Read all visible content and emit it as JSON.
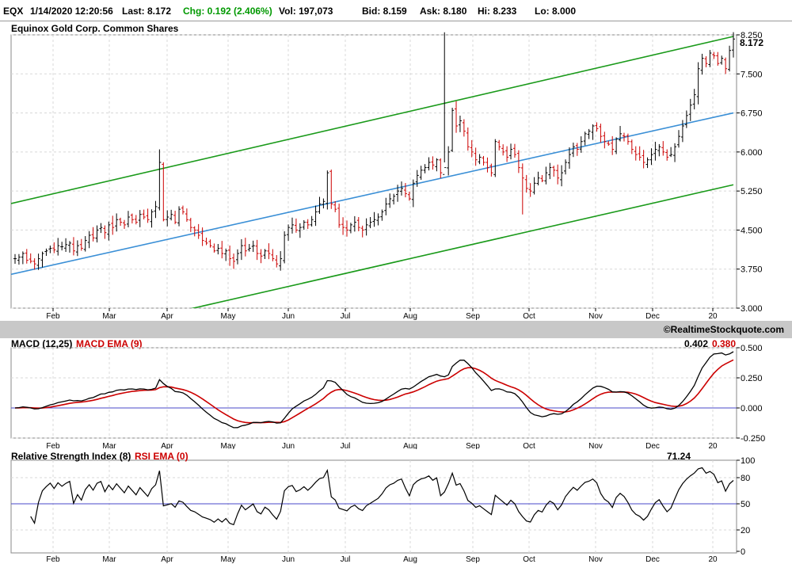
{
  "quote": {
    "symbol": "EQX",
    "datetime": "1/14/2020 12:20:56",
    "last": "Last: 8.172",
    "chg": "Chg: 0.192 (2.406%)",
    "vol": "Vol: 197,073",
    "bid": "Bid: 8.159",
    "ask": "Ask: 8.180",
    "hi": "Hi: 8.233",
    "lo": "Lo: 8.000"
  },
  "watermark": "©RealtimeStockquote.com",
  "colors": {
    "up": "#000000",
    "down": "#cc0000",
    "channel": "#1a9a1a",
    "regression": "#3a8fd6",
    "macd": "#000000",
    "signal": "#cc0000",
    "zero": "#4a4ac8"
  },
  "chart_data": [
    {
      "type": "ohlc",
      "title": "Equinox Gold Corp. Common Shares",
      "last_label": "8.172",
      "x_labels": [
        "Feb",
        "Mar",
        "Apr",
        "May",
        "Jun",
        "Jul",
        "Aug",
        "Sep",
        "Oct",
        "Nov",
        "Dec",
        "20"
      ],
      "y_ticks": [
        "8.250",
        "7.500",
        "6.750",
        "6.000",
        "5.250",
        "4.500",
        "3.750",
        "3.000"
      ],
      "ylim": [
        3.0,
        8.25
      ],
      "trendlines": [
        {
          "name": "upper",
          "points": [
            [
              0,
              5.01
            ],
            [
              912,
              8.22
            ]
          ]
        },
        {
          "name": "middle",
          "points": [
            [
              0,
              3.65
            ],
            [
              912,
              6.75
            ]
          ]
        },
        {
          "name": "lower",
          "points": [
            [
              0,
              2.2
            ],
            [
              912,
              5.37
            ]
          ]
        }
      ],
      "closes": [
        3.95,
        3.98,
        4.05,
        3.92,
        3.9,
        3.85,
        3.95,
        4.05,
        4.1,
        4.15,
        4.12,
        4.2,
        4.18,
        4.22,
        4.25,
        4.1,
        4.2,
        4.15,
        4.3,
        4.4,
        4.35,
        4.5,
        4.55,
        4.45,
        4.6,
        4.55,
        4.7,
        4.65,
        4.6,
        4.75,
        4.7,
        4.65,
        4.8,
        4.75,
        4.7,
        4.85,
        4.95,
        5.8,
        4.7,
        4.75,
        4.8,
        4.65,
        4.9,
        4.85,
        4.7,
        4.55,
        4.5,
        4.4,
        4.3,
        4.25,
        4.2,
        4.1,
        4.15,
        4.05,
        4.1,
        3.95,
        3.9,
        4.05,
        4.2,
        4.1,
        4.15,
        4.2,
        4.05,
        4.0,
        4.1,
        4.05,
        3.95,
        3.85,
        3.95,
        4.4,
        4.55,
        4.6,
        4.5,
        4.55,
        4.65,
        4.6,
        4.7,
        4.85,
        5.0,
        5.05,
        5.6,
        5.0,
        4.9,
        4.6,
        4.55,
        4.5,
        4.6,
        4.65,
        4.55,
        4.5,
        4.6,
        4.65,
        4.7,
        4.75,
        4.85,
        5.0,
        5.1,
        5.15,
        5.25,
        5.3,
        5.2,
        5.1,
        5.4,
        5.55,
        5.65,
        5.7,
        5.8,
        5.75,
        5.85,
        5.6,
        5.7,
        6.0,
        6.8,
        6.5,
        6.6,
        6.4,
        6.1,
        6.0,
        5.85,
        5.9,
        5.8,
        5.7,
        5.6,
        6.2,
        6.1,
        6.0,
        5.9,
        6.05,
        5.95,
        5.7,
        5.5,
        5.3,
        5.25,
        5.4,
        5.5,
        5.45,
        5.6,
        5.7,
        5.65,
        5.5,
        5.6,
        5.8,
        5.95,
        6.1,
        6.05,
        6.2,
        6.35,
        6.4,
        6.5,
        6.45,
        6.3,
        6.2,
        6.15,
        6.05,
        6.25,
        6.35,
        6.3,
        6.2,
        6.05,
        5.95,
        5.9,
        5.8,
        5.85,
        5.95,
        6.05,
        6.1,
        6.0,
        5.9,
        5.95,
        6.1,
        6.3,
        6.5,
        6.7,
        6.9,
        7.1,
        7.6,
        7.8,
        7.7,
        7.9,
        7.85,
        7.7,
        7.8,
        7.6,
        7.95,
        8.17
      ]
    },
    {
      "type": "line",
      "title": "MACD (12,25)",
      "signal_title": "MACD EMA (9)",
      "value_macd": "0.402",
      "value_signal": "0.380",
      "y_ticks": [
        "0.500",
        "0.250",
        "0.000",
        "-0.250"
      ],
      "ylim": [
        -0.25,
        0.5
      ]
    },
    {
      "type": "line",
      "title": "Relative Strength Index (8)",
      "ema_title": "RSI EMA (0)",
      "value": "71.24",
      "y_ticks": [
        "100",
        "80",
        "50",
        "20",
        "0"
      ],
      "ylim": [
        0,
        100
      ],
      "reference": 50
    }
  ]
}
